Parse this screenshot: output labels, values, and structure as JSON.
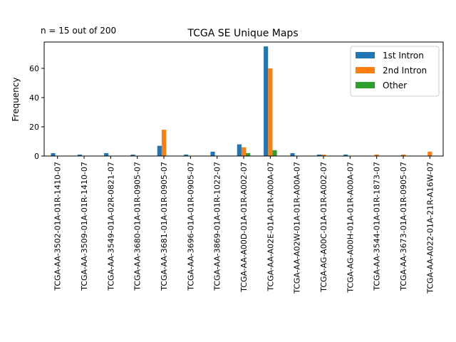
{
  "chart_data": {
    "type": "bar",
    "title": "TCGA SE Unique Maps",
    "annotation": "n = 15 out of 200",
    "xlabel": "",
    "ylabel": "Frequency",
    "ylim": [
      0,
      78
    ],
    "yticks": [
      0,
      20,
      40,
      60
    ],
    "grid": false,
    "legend_position": "top-right",
    "categories": [
      "TCGA-AA-3502-01A-01R-1410-07",
      "TCGA-AA-3509-01A-01R-1410-07",
      "TCGA-AA-3549-01A-02R-0821-07",
      "TCGA-AA-3680-01A-01R-0905-07",
      "TCGA-AA-3681-01A-01R-0905-07",
      "TCGA-AA-3696-01A-01R-0905-07",
      "TCGA-AA-3869-01A-01R-1022-07",
      "TCGA-AA-A00D-01A-01R-A002-07",
      "TCGA-AA-A02E-01A-01R-A00A-07",
      "TCGA-AA-A02W-01A-01R-A00A-07",
      "TCGA-AG-A00C-01A-01R-A002-07",
      "TCGA-AG-A00H-01A-01R-A00A-07",
      "TCGA-AA-3544-01A-01R-1873-07",
      "TCGA-AA-3673-01A-01R-0905-07",
      "TCGA-AA-A022-01A-21R-A16W-07"
    ],
    "series": [
      {
        "name": "1st Intron",
        "color": "#1f77b4",
        "values": [
          2,
          1,
          2,
          1,
          7,
          1,
          3,
          8,
          75,
          2,
          1,
          1,
          0,
          0,
          0
        ]
      },
      {
        "name": "2nd Intron",
        "color": "#ff7f0e",
        "values": [
          0,
          0,
          0,
          0,
          18,
          0,
          0,
          6,
          60,
          0,
          1,
          0,
          1,
          1,
          3
        ]
      },
      {
        "name": "Other",
        "color": "#2ca02c",
        "values": [
          0,
          0,
          0,
          0,
          0,
          0,
          0,
          2,
          4,
          0,
          0,
          0,
          0,
          0,
          0
        ]
      }
    ]
  }
}
